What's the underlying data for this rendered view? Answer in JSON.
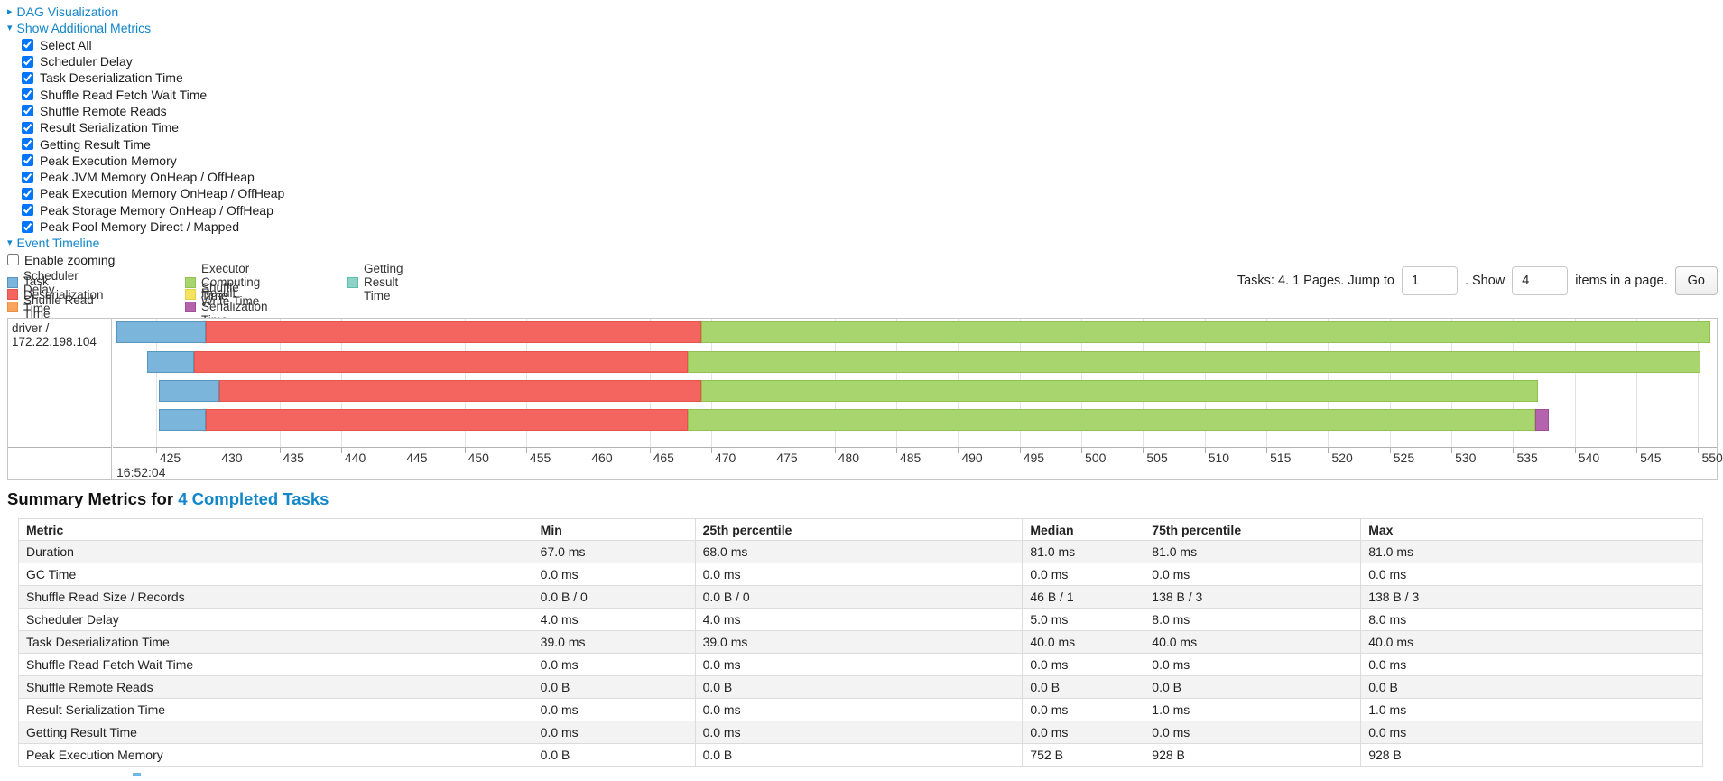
{
  "controls": {
    "dag_label": "DAG Visualization",
    "metrics_label": "Show Additional Metrics",
    "metric_checkboxes": [
      "Select All",
      "Scheduler Delay",
      "Task Deserialization Time",
      "Shuffle Read Fetch Wait Time",
      "Shuffle Remote Reads",
      "Result Serialization Time",
      "Getting Result Time",
      "Peak Execution Memory",
      "Peak JVM Memory OnHeap / OffHeap",
      "Peak Execution Memory OnHeap / OffHeap",
      "Peak Storage Memory OnHeap / OffHeap",
      "Peak Pool Memory Direct / Mapped"
    ],
    "event_timeline_label": "Event Timeline",
    "enable_zooming_label": "Enable zooming"
  },
  "legend": {
    "items": [
      {
        "label": "Scheduler Delay",
        "type": "scheduler_delay",
        "fill": "#7cb5db",
        "border": "#5795c1"
      },
      {
        "label": "Task Deserialization Time",
        "type": "task_deserialization",
        "fill": "#f4655f",
        "border": "#e6534d"
      },
      {
        "label": "Shuffle Read Time",
        "type": "shuffle_read",
        "fill": "#f9a45c",
        "border": "#ee8f3f"
      },
      {
        "label": "Executor Computing Time",
        "type": "executor_computing",
        "fill": "#a9d56e",
        "border": "#91c24f"
      },
      {
        "label": "Shuffle Write Time",
        "type": "shuffle_write",
        "fill": "#f3e35e",
        "border": "#e3d246"
      },
      {
        "label": "Result Serialization Time",
        "type": "result_serialization",
        "fill": "#b364ac",
        "border": "#9e4f97"
      },
      {
        "label": "Getting Result Time",
        "type": "getting_result",
        "fill": "#8fd3c7",
        "border": "#5abfab"
      }
    ]
  },
  "pagination": {
    "prefix": "Tasks: 4. 1 Pages. Jump to",
    "jump_value": "1",
    "between": ". Show",
    "page_size_value": "4",
    "suffix": "items in a page.",
    "go_label": "Go"
  },
  "chart_data": {
    "type": "timeline",
    "title": "Event Timeline",
    "group_label": "driver / 172.22.198.104",
    "x_axis": {
      "min": 421.5,
      "max": 551.5,
      "tick_start": 425,
      "tick_end": 550,
      "tick_step": 5,
      "unit": "ms",
      "time_label": "16:52:04"
    },
    "tasks": [
      {
        "segments": [
          {
            "type": "scheduler_delay",
            "start": 421.8,
            "end": 429.0
          },
          {
            "type": "task_deserialization",
            "start": 429.0,
            "end": 469.2
          },
          {
            "type": "executor_computing",
            "start": 469.2,
            "end": 551.0
          }
        ]
      },
      {
        "segments": [
          {
            "type": "scheduler_delay",
            "start": 424.3,
            "end": 428.1
          },
          {
            "type": "task_deserialization",
            "start": 428.1,
            "end": 468.1
          },
          {
            "type": "executor_computing",
            "start": 468.1,
            "end": 550.2
          }
        ]
      },
      {
        "segments": [
          {
            "type": "scheduler_delay",
            "start": 425.2,
            "end": 430.1
          },
          {
            "type": "task_deserialization",
            "start": 430.1,
            "end": 469.2
          },
          {
            "type": "executor_computing",
            "start": 469.2,
            "end": 537.0
          }
        ]
      },
      {
        "segments": [
          {
            "type": "scheduler_delay",
            "start": 425.2,
            "end": 429.0
          },
          {
            "type": "task_deserialization",
            "start": 429.0,
            "end": 468.1
          },
          {
            "type": "executor_computing",
            "start": 468.1,
            "end": 536.8
          },
          {
            "type": "result_serialization",
            "start": 536.8,
            "end": 537.9
          }
        ]
      }
    ]
  },
  "summary": {
    "title_prefix": "Summary Metrics for",
    "title_link": "4 Completed Tasks",
    "table": {
      "headers": [
        "Metric",
        "Min",
        "25th percentile",
        "Median",
        "75th percentile",
        "Max"
      ],
      "rows": [
        [
          "Duration",
          "67.0 ms",
          "68.0 ms",
          "81.0 ms",
          "81.0 ms",
          "81.0 ms"
        ],
        [
          "GC Time",
          "0.0 ms",
          "0.0 ms",
          "0.0 ms",
          "0.0 ms",
          "0.0 ms"
        ],
        [
          "Shuffle Read Size / Records",
          "0.0 B / 0",
          "0.0 B / 0",
          "46 B / 1",
          "138 B / 3",
          "138 B / 3"
        ],
        [
          "Scheduler Delay",
          "4.0 ms",
          "4.0 ms",
          "5.0 ms",
          "8.0 ms",
          "8.0 ms"
        ],
        [
          "Task Deserialization Time",
          "39.0 ms",
          "39.0 ms",
          "40.0 ms",
          "40.0 ms",
          "40.0 ms"
        ],
        [
          "Shuffle Read Fetch Wait Time",
          "0.0 ms",
          "0.0 ms",
          "0.0 ms",
          "0.0 ms",
          "0.0 ms"
        ],
        [
          "Shuffle Remote Reads",
          "0.0 B",
          "0.0 B",
          "0.0 B",
          "0.0 B",
          "0.0 B"
        ],
        [
          "Result Serialization Time",
          "0.0 ms",
          "0.0 ms",
          "0.0 ms",
          "1.0 ms",
          "1.0 ms"
        ],
        [
          "Getting Result Time",
          "0.0 ms",
          "0.0 ms",
          "0.0 ms",
          "0.0 ms",
          "0.0 ms"
        ],
        [
          "Peak Execution Memory",
          "0.0 B",
          "0.0 B",
          "752 B",
          "928 B",
          "928 B"
        ]
      ]
    }
  }
}
